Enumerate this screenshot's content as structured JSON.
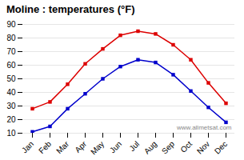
{
  "chart_data": {
    "type": "line",
    "title": "Moline : temperatures (°F)",
    "categories": [
      "Jan",
      "Feb",
      "Mar",
      "Apr",
      "May",
      "Jun",
      "Jul",
      "Aug",
      "Sep",
      "Oct",
      "Nov",
      "Dec"
    ],
    "series": [
      {
        "color": "#dd0000",
        "marker": "square",
        "values": [
          28,
          33,
          46,
          61,
          72,
          82,
          85,
          83,
          75,
          64,
          47,
          32
        ]
      },
      {
        "color": "#0000cc",
        "marker": "square",
        "values": [
          11,
          15,
          28,
          39,
          50,
          59,
          64,
          62,
          53,
          41,
          29,
          18
        ]
      }
    ],
    "ylim": [
      10,
      90
    ],
    "yticks": [
      10,
      20,
      30,
      40,
      50,
      60,
      70,
      80,
      90
    ],
    "grid": true,
    "annotations": [
      "www.allmetsat.com"
    ]
  }
}
